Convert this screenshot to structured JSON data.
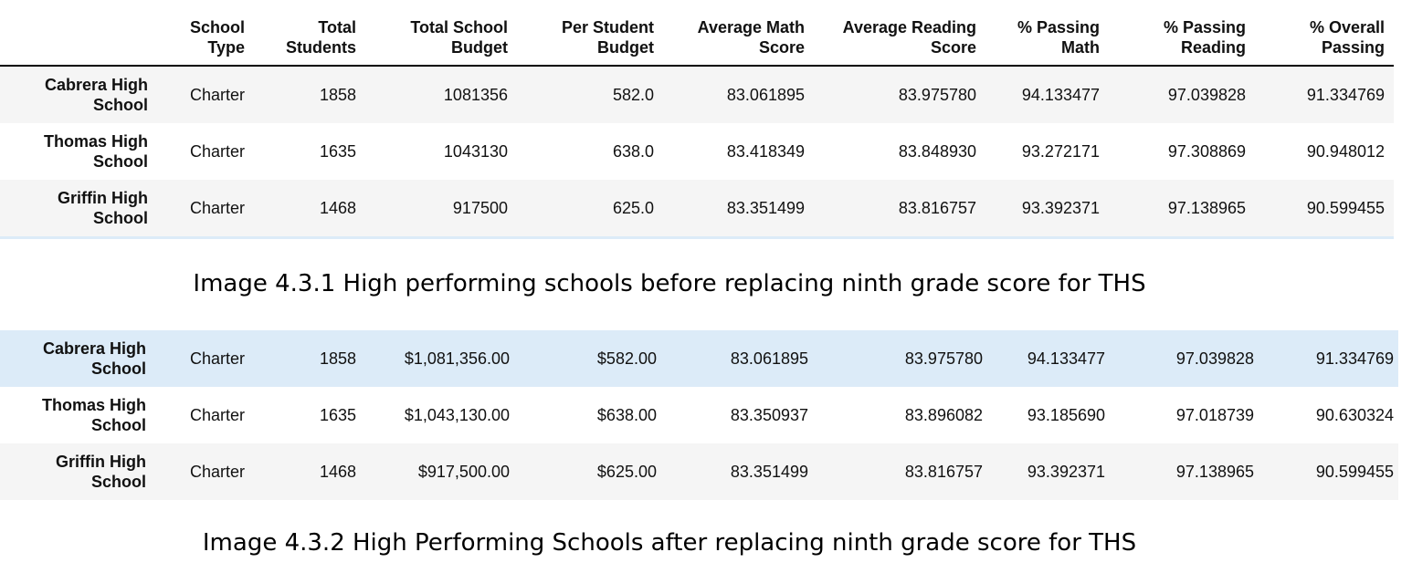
{
  "table1": {
    "headers": [
      "",
      "School\nType",
      "Total\nStudents",
      "Total School\nBudget",
      "Per Student\nBudget",
      "Average Math\nScore",
      "Average Reading\nScore",
      "% Passing\nMath",
      "% Passing\nReading",
      "% Overall\nPassing"
    ],
    "rows": [
      [
        "Cabrera High\nSchool",
        "Charter",
        "1858",
        "1081356",
        "582.0",
        "83.061895",
        "83.975780",
        "94.133477",
        "97.039828",
        "91.334769"
      ],
      [
        "Thomas High\nSchool",
        "Charter",
        "1635",
        "1043130",
        "638.0",
        "83.418349",
        "83.848930",
        "93.272171",
        "97.308869",
        "90.948012"
      ],
      [
        "Griffin High\nSchool",
        "Charter",
        "1468",
        "917500",
        "625.0",
        "83.351499",
        "83.816757",
        "93.392371",
        "97.138965",
        "90.599455"
      ]
    ]
  },
  "caption1": "Image 4.3.1 High performing schools before replacing ninth grade score for THS",
  "table2": {
    "rows": [
      [
        "Cabrera High\nSchool",
        "Charter",
        "1858",
        "$1,081,356.00",
        "$582.00",
        "83.061895",
        "83.975780",
        "94.133477",
        "97.039828",
        "91.334769"
      ],
      [
        "Thomas High\nSchool",
        "Charter",
        "1635",
        "$1,043,130.00",
        "$638.00",
        "83.350937",
        "83.896082",
        "93.185690",
        "97.018739",
        "90.630324"
      ],
      [
        "Griffin High\nSchool",
        "Charter",
        "1468",
        "$917,500.00",
        "$625.00",
        "83.351499",
        "83.816757",
        "93.392371",
        "97.138965",
        "90.599455"
      ]
    ]
  },
  "caption2": "Image 4.3.2 High Performing Schools after replacing ninth grade score for THS",
  "colors": {
    "stripe": "#f5f5f5",
    "hover": "#dcebf8",
    "rule": "#000000"
  }
}
